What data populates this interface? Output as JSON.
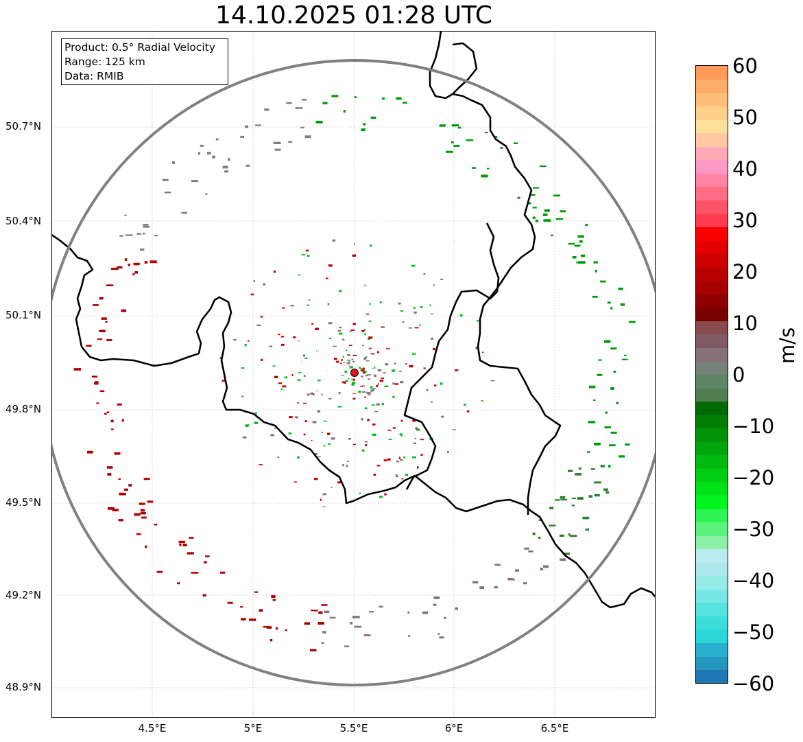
{
  "title": "14.10.2025 01:28 UTC",
  "info": {
    "product": "Product: 0.5° Radial Velocity",
    "range": "Range: 125 km",
    "data": "Data: RMIB"
  },
  "axes": {
    "lat_ticks": [
      "50.7°N",
      "50.4°N",
      "50.1°N",
      "49.8°N",
      "49.5°N",
      "49.2°N",
      "48.9°N"
    ],
    "lon_ticks": [
      "4.5°E",
      "5°E",
      "5.5°E",
      "6°E",
      "6.5°E"
    ]
  },
  "radar": {
    "site_lon": 5.5,
    "site_lat": 49.91,
    "site_color": "#e8141c",
    "range_ring_color": "#808080"
  },
  "colorbar": {
    "unit": "m/s",
    "min": -60,
    "max": 60,
    "tick_labels": [
      "60",
      "50",
      "40",
      "30",
      "20",
      "10",
      "0",
      "−10",
      "−20",
      "−30",
      "−40",
      "−50",
      "−60"
    ],
    "colors": [
      "#1f77b4",
      "#2596be",
      "#2ab0cf",
      "#2bd6d8",
      "#3ddddc",
      "#58e2e0",
      "#76e7e4",
      "#94ebe8",
      "#ace8ec",
      "#b8ecef",
      "#8cf0a8",
      "#5df27b",
      "#2ef454",
      "#00f61c",
      "#00e218",
      "#00ce14",
      "#00ba10",
      "#00a60c",
      "#009208",
      "#007e04",
      "#006a00",
      "#4f7e52",
      "#5f8766",
      "#76807a",
      "#887078",
      "#7f5a64",
      "#894a50",
      "#7a0000",
      "#8f0000",
      "#a40000",
      "#b90000",
      "#ce0000",
      "#e30000",
      "#f80000",
      "#ff3b4c",
      "#ff5468",
      "#ff6d84",
      "#ff84a4",
      "#ff98c4",
      "#ffaab4",
      "#ffc8a0",
      "#ffe09a",
      "#ffd08a",
      "#ffbe78",
      "#ffac68",
      "#ff9a58"
    ]
  }
}
